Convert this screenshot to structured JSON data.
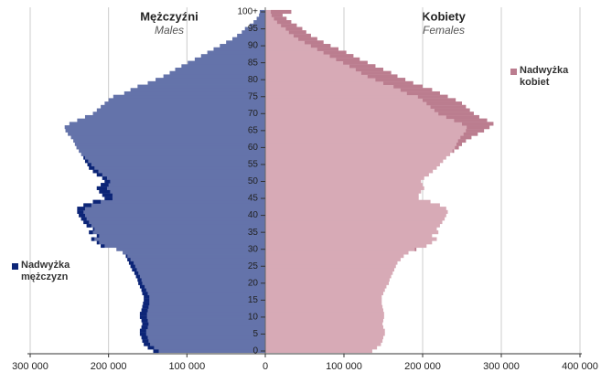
{
  "chart_data": {
    "type": "pyramid",
    "categories": [
      "0",
      null,
      null,
      null,
      null,
      "5",
      null,
      null,
      null,
      null,
      "10",
      null,
      null,
      null,
      null,
      "15",
      null,
      null,
      null,
      null,
      "20",
      null,
      null,
      null,
      null,
      "25",
      null,
      null,
      null,
      null,
      "30",
      null,
      null,
      null,
      null,
      "35",
      null,
      null,
      null,
      null,
      "40",
      null,
      null,
      null,
      null,
      "45",
      null,
      null,
      null,
      null,
      "50",
      null,
      null,
      null,
      null,
      "55",
      null,
      null,
      null,
      null,
      "60",
      null,
      null,
      null,
      null,
      "65",
      null,
      null,
      null,
      null,
      "70",
      null,
      null,
      null,
      null,
      "75",
      null,
      null,
      null,
      null,
      "80",
      null,
      null,
      null,
      null,
      "85",
      null,
      null,
      null,
      null,
      "90",
      null,
      null,
      null,
      null,
      "95",
      null,
      null,
      null,
      null,
      "100+"
    ],
    "series": [
      {
        "name": "Mężczyźni",
        "subtitle": "Males",
        "color": "#6473aa",
        "values": [
          143000,
          150000,
          155000,
          157000,
          158000,
          160000,
          160000,
          158000,
          157000,
          158000,
          160000,
          160000,
          158000,
          157000,
          156000,
          155000,
          155000,
          157000,
          158000,
          160000,
          162000,
          163000,
          165000,
          167000,
          170000,
          172000,
          174000,
          176000,
          178000,
          182000,
          190000,
          210000,
          215000,
          222000,
          215000,
          225000,
          220000,
          228000,
          232000,
          235000,
          238000,
          240000,
          240000,
          232000,
          220000,
          205000,
          208000,
          212000,
          215000,
          210000,
          205000,
          208000,
          215000,
          220000,
          225000,
          227000,
          230000,
          232000,
          235000,
          238000,
          241000,
          243000,
          245000,
          248000,
          252000,
          255000,
          256000,
          250000,
          240000,
          230000,
          220000,
          215000,
          210000,
          205000,
          200000,
          194000,
          180000,
          172000,
          163000,
          150000,
          140000,
          130000,
          122000,
          115000,
          107000,
          99000,
          90000,
          82000,
          74000,
          66000,
          58000,
          50000,
          42000,
          36000,
          30000,
          26000,
          20000,
          15000,
          11000,
          8000,
          7000
        ]
      },
      {
        "name": "Kobiety",
        "subtitle": "Females",
        "color": "#d7aab6",
        "values": [
          136000,
          142000,
          147000,
          149000,
          150000,
          152000,
          152000,
          150000,
          149000,
          150000,
          151000,
          151000,
          150000,
          149000,
          148000,
          148000,
          148000,
          150000,
          152000,
          154000,
          157000,
          158000,
          160000,
          162000,
          164000,
          166000,
          168000,
          172000,
          176000,
          182000,
          192000,
          205000,
          212000,
          218000,
          212000,
          220000,
          218000,
          222000,
          225000,
          228000,
          230000,
          232000,
          230000,
          222000,
          210000,
          195000,
          195000,
          198000,
          202000,
          200000,
          198000,
          202000,
          208000,
          213000,
          218000,
          222000,
          226000,
          230000,
          235000,
          240000,
          246000,
          250000,
          255000,
          262000,
          270000,
          278000,
          285000,
          290000,
          282000,
          272000,
          265000,
          260000,
          255000,
          250000,
          242000,
          232000,
          222000,
          212000,
          200000,
          188000,
          178000,
          168000,
          160000,
          150000,
          140000,
          130000,
          120000,
          112000,
          103000,
          93000,
          83000,
          74000,
          66000,
          58000,
          52000,
          47000,
          40000,
          33000,
          27000,
          22000,
          33000
        ]
      }
    ],
    "excess": [
      {
        "name": "Nadwyżka mężczyzn",
        "color": "#0c2577"
      },
      {
        "name": "Nadwyżka kobiet",
        "color": "#bb7d8f"
      }
    ],
    "left_xlim": [
      0,
      300000
    ],
    "left_xticks": [
      {
        "value": 300000,
        "label": "300 000"
      },
      {
        "value": 200000,
        "label": "200 000"
      },
      {
        "value": 100000,
        "label": "100 000"
      }
    ],
    "right_xlim": [
      0,
      400000
    ],
    "right_xticks": [
      0,
      {
        "value": 100000,
        "label": "100 000"
      },
      {
        "value": 200000,
        "label": "200 000"
      },
      {
        "value": 300000,
        "label": "300 000"
      },
      {
        "value": 400000,
        "label": "400 000"
      }
    ],
    "grid": true
  }
}
